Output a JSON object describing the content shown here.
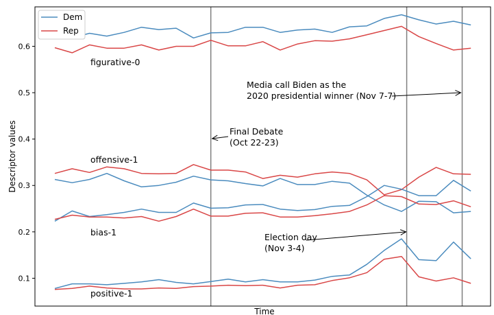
{
  "chart_data": {
    "type": "line",
    "xlabel": "Time",
    "ylabel": "Descriptor values",
    "ylim": [
      0.04,
      0.685
    ],
    "yticks": [
      "0.1",
      "0.2",
      "0.3",
      "0.4",
      "0.5",
      "0.6"
    ],
    "grid": false,
    "legend_position": "top-left",
    "colors": {
      "Dem": "#4a8bbe",
      "Rep": "#d94646"
    },
    "x_points": 25,
    "event_lines": [
      {
        "x": 9,
        "label": "Final Debate\n(Oct 22-23)"
      },
      {
        "x": 20.3,
        "label": "Election day\n(Nov 3-4)"
      },
      {
        "x": 23.5,
        "label": "Media call Biden as the\n2020 presidential winner (Nov 7-7)"
      }
    ],
    "descriptor_labels": [
      "figurative-0",
      "offensive-1",
      "bias-1",
      "positive-1"
    ],
    "series": [
      {
        "name": "Dem",
        "group": "figurative-0",
        "values": [
          0.634,
          0.618,
          0.628,
          0.622,
          0.63,
          0.641,
          0.636,
          0.639,
          0.618,
          0.629,
          0.63,
          0.641,
          0.641,
          0.63,
          0.635,
          0.637,
          0.63,
          0.642,
          0.644,
          0.66,
          0.668,
          0.657,
          0.648,
          0.654,
          0.646
        ]
      },
      {
        "name": "Rep",
        "group": "figurative-0",
        "values": [
          0.597,
          0.586,
          0.603,
          0.596,
          0.596,
          0.603,
          0.592,
          0.6,
          0.6,
          0.613,
          0.601,
          0.601,
          0.61,
          0.592,
          0.605,
          0.612,
          0.611,
          0.616,
          0.625,
          0.634,
          0.643,
          0.621,
          0.606,
          0.592,
          0.596
        ]
      },
      {
        "name": "Dem",
        "group": "offensive-1",
        "values": [
          0.313,
          0.306,
          0.313,
          0.326,
          0.31,
          0.297,
          0.3,
          0.307,
          0.32,
          0.312,
          0.31,
          0.304,
          0.299,
          0.315,
          0.302,
          0.302,
          0.309,
          0.305,
          0.279,
          0.258,
          0.244,
          0.266,
          0.265,
          0.241,
          0.244
        ]
      },
      {
        "name": "Rep",
        "group": "offensive-1",
        "values": [
          0.326,
          0.336,
          0.328,
          0.34,
          0.336,
          0.326,
          0.325,
          0.326,
          0.345,
          0.333,
          0.333,
          0.329,
          0.315,
          0.322,
          0.318,
          0.325,
          0.329,
          0.326,
          0.312,
          0.28,
          0.291,
          0.318,
          0.339,
          0.325,
          0.324
        ]
      },
      {
        "name": "Dem",
        "group": "bias-1",
        "values": [
          0.223,
          0.245,
          0.233,
          0.237,
          0.242,
          0.249,
          0.242,
          0.242,
          0.262,
          0.251,
          0.252,
          0.258,
          0.259,
          0.249,
          0.246,
          0.248,
          0.255,
          0.257,
          0.276,
          0.3,
          0.292,
          0.278,
          0.278,
          0.311,
          0.288
        ]
      },
      {
        "name": "Rep",
        "group": "bias-1",
        "values": [
          0.227,
          0.236,
          0.232,
          0.232,
          0.23,
          0.233,
          0.223,
          0.233,
          0.249,
          0.234,
          0.234,
          0.24,
          0.241,
          0.232,
          0.232,
          0.235,
          0.239,
          0.244,
          0.258,
          0.278,
          0.276,
          0.26,
          0.259,
          0.267,
          0.254
        ]
      },
      {
        "name": "Dem",
        "group": "positive-1",
        "values": [
          0.078,
          0.088,
          0.088,
          0.086,
          0.089,
          0.092,
          0.097,
          0.091,
          0.088,
          0.093,
          0.098,
          0.092,
          0.097,
          0.092,
          0.092,
          0.096,
          0.104,
          0.107,
          0.13,
          0.16,
          0.185,
          0.14,
          0.138,
          0.178,
          0.142
        ]
      },
      {
        "name": "Rep",
        "group": "positive-1",
        "values": [
          0.076,
          0.078,
          0.083,
          0.079,
          0.077,
          0.077,
          0.079,
          0.078,
          0.082,
          0.083,
          0.085,
          0.084,
          0.085,
          0.079,
          0.085,
          0.086,
          0.095,
          0.101,
          0.112,
          0.141,
          0.147,
          0.103,
          0.094,
          0.101,
          0.089
        ]
      }
    ]
  }
}
